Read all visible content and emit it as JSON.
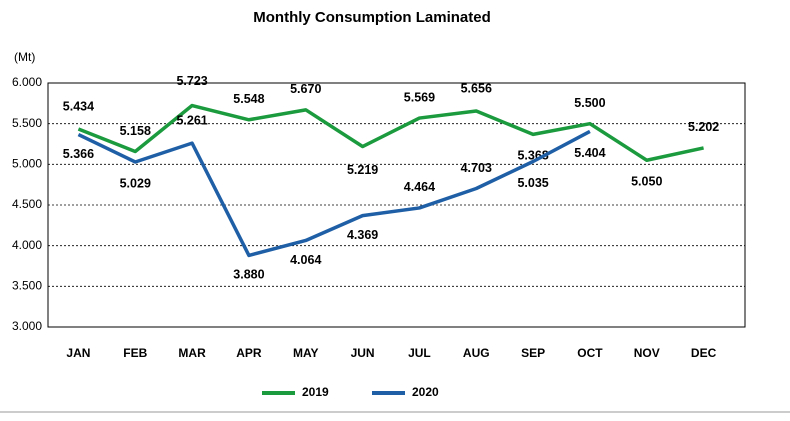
{
  "chart_data": {
    "type": "line",
    "title": "Monthly Consumption Laminated",
    "y_label": "(Mt)",
    "categories": [
      "JAN",
      "FEB",
      "MAR",
      "APR",
      "MAY",
      "JUN",
      "JUL",
      "AUG",
      "SEP",
      "OCT",
      "NOV",
      "DEC"
    ],
    "series": [
      {
        "name": "2019",
        "color": "#1c9a3e",
        "values": [
          5.434,
          5.158,
          5.723,
          5.548,
          5.67,
          5.219,
          5.569,
          5.656,
          5.368,
          5.5,
          5.05,
          5.202
        ],
        "value_labels": [
          "5.434",
          "5.158",
          "5.723",
          "5.548",
          "5.670",
          "5.219",
          "5.569",
          "5.656",
          "5.368",
          "5.500",
          "5.050",
          "5.202"
        ]
      },
      {
        "name": "2020",
        "color": "#1f5fa6",
        "values": [
          5.366,
          5.029,
          5.261,
          3.88,
          4.064,
          4.369,
          4.464,
          4.703,
          5.035,
          5.404,
          null,
          null
        ],
        "value_labels": [
          "5.366",
          "5.029",
          "5.261",
          "3.880",
          "4.064",
          "4.369",
          "4.464",
          "4.703",
          "5.035",
          "5.404",
          null,
          null
        ]
      }
    ],
    "ylim": [
      3,
      6
    ],
    "yticks": [
      {
        "value": 3,
        "label": "3.000"
      },
      {
        "value": 3.5,
        "label": "3.500"
      },
      {
        "value": 4,
        "label": "4.000"
      },
      {
        "value": 4.5,
        "label": "4.500"
      },
      {
        "value": 5,
        "label": "5.000"
      },
      {
        "value": 5.5,
        "label": "5.500"
      },
      {
        "value": 6,
        "label": "6.000"
      }
    ],
    "grid": true,
    "legend": "bottom"
  }
}
